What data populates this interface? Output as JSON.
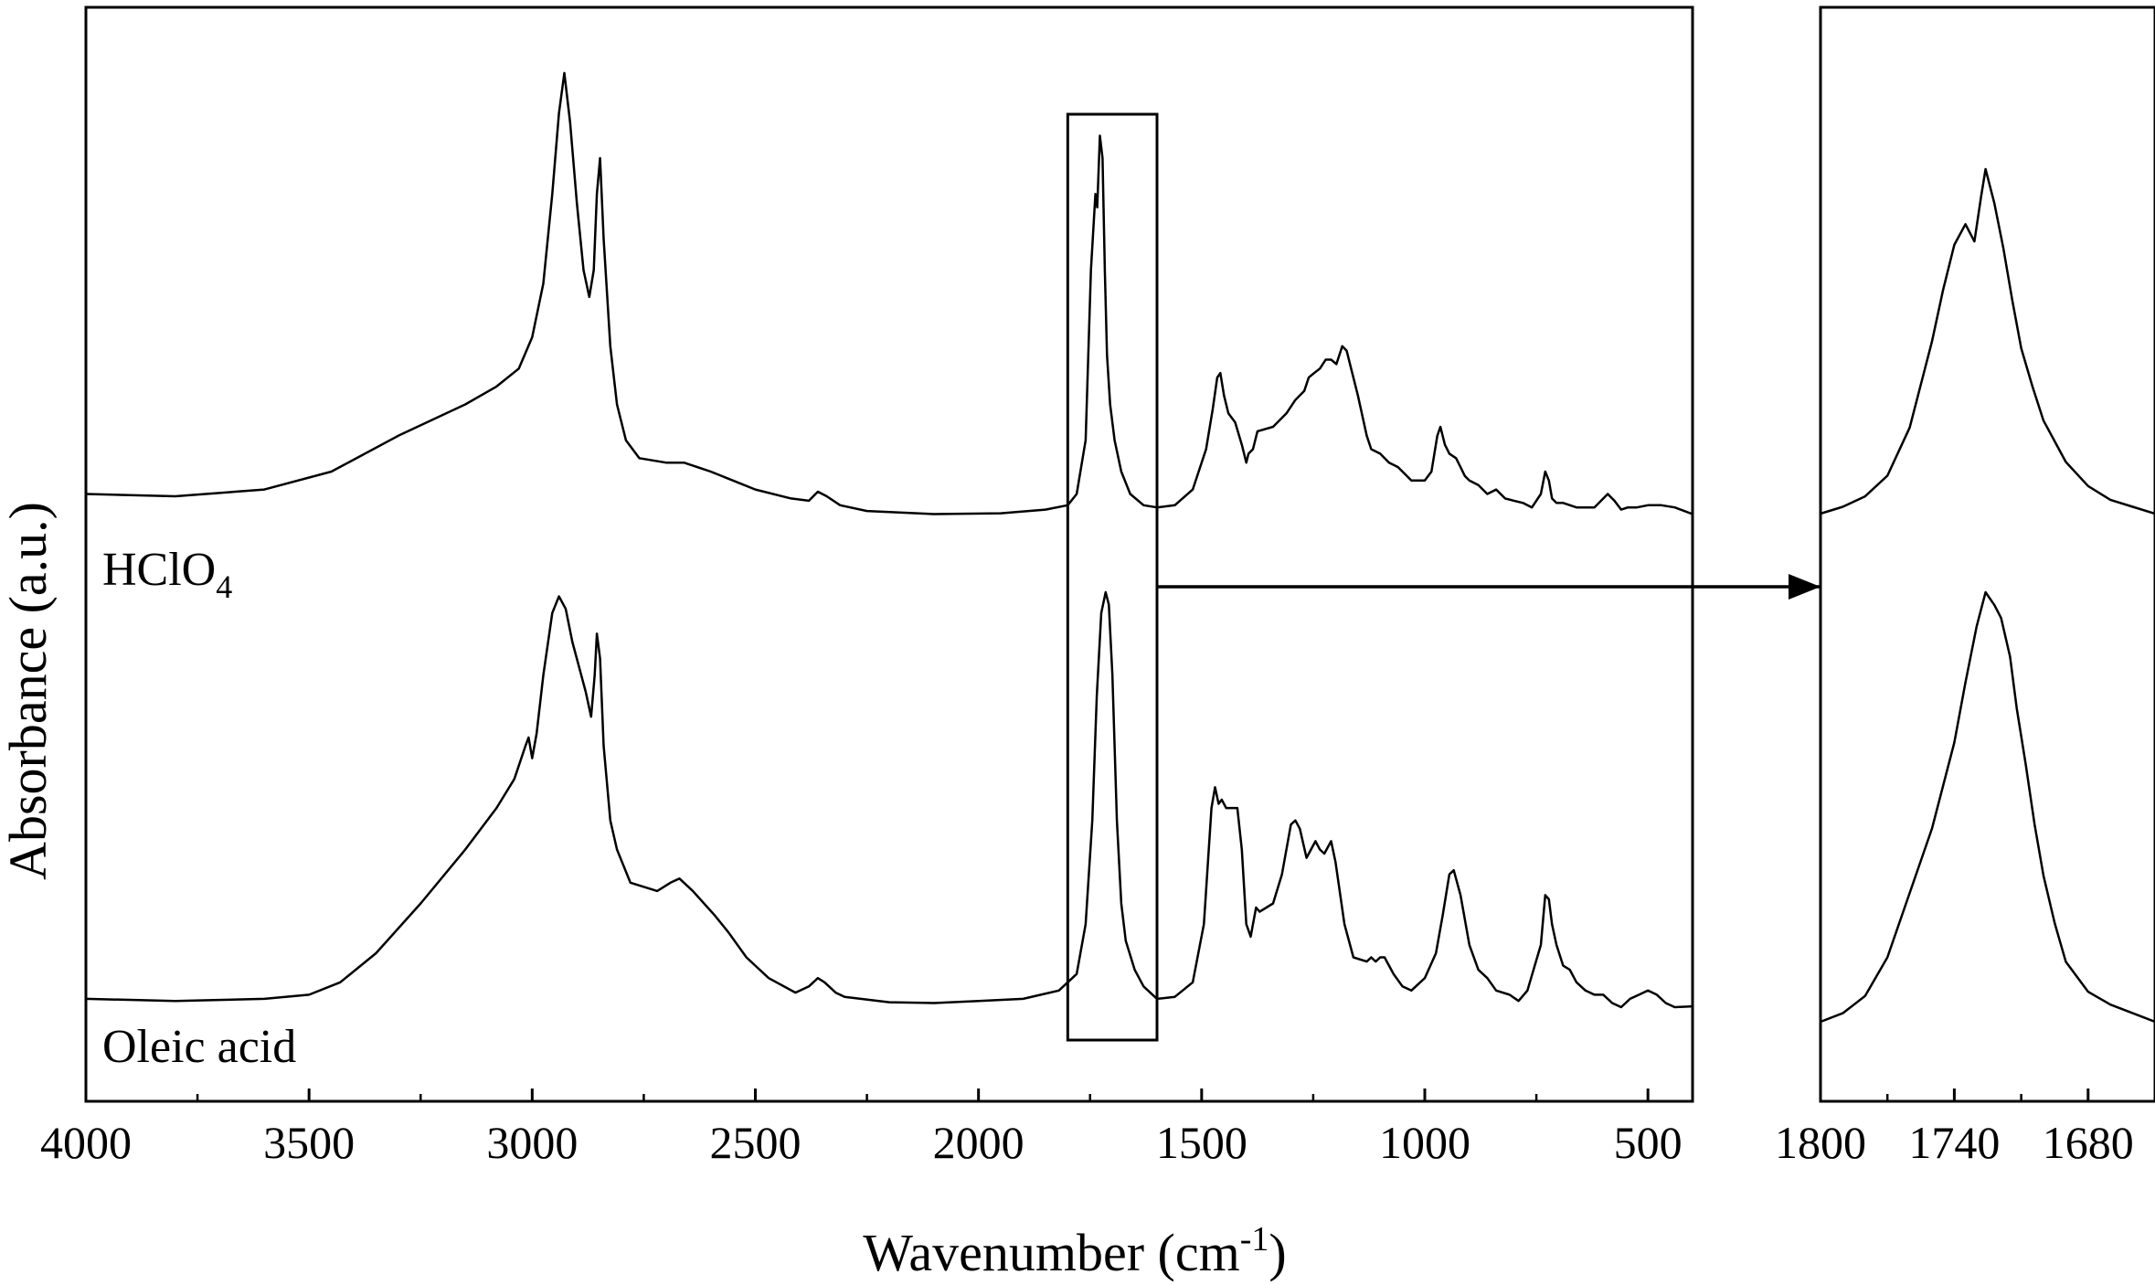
{
  "chart_data": [
    {
      "type": "line",
      "title": "",
      "xlabel": "Wavenumber (cm-1)",
      "xlabel_parts": {
        "main": "Wavenumber (cm",
        "sup": "-1",
        "end": ")"
      },
      "ylabel": "Absorbance (a.u.)",
      "xlim": [
        4000,
        400
      ],
      "x_reversed": true,
      "x_ticks": [
        4000,
        3500,
        3000,
        2500,
        2000,
        1500,
        1000,
        500
      ],
      "y_ticks": [],
      "grid": false,
      "series": [
        {
          "name": "HClO4",
          "label_parts": {
            "main": "HClO",
            "sub": "4"
          },
          "x": [
            4000,
            3800,
            3600,
            3450,
            3300,
            3150,
            3080,
            3030,
            3000,
            2975,
            2955,
            2940,
            2928,
            2915,
            2900,
            2885,
            2872,
            2862,
            2855,
            2848,
            2840,
            2825,
            2810,
            2790,
            2760,
            2700,
            2660,
            2600,
            2550,
            2500,
            2420,
            2380,
            2360,
            2340,
            2310,
            2250,
            2100,
            1950,
            1850,
            1800,
            1780,
            1760,
            1748,
            1738,
            1734,
            1728,
            1722,
            1717,
            1712,
            1705,
            1695,
            1680,
            1660,
            1630,
            1600,
            1560,
            1520,
            1490,
            1475,
            1465,
            1458,
            1450,
            1440,
            1425,
            1410,
            1400,
            1395,
            1385,
            1375,
            1340,
            1310,
            1290,
            1270,
            1260,
            1248,
            1235,
            1222,
            1210,
            1198,
            1185,
            1175,
            1165,
            1150,
            1130,
            1120,
            1100,
            1080,
            1060,
            1040,
            1030,
            1015,
            1000,
            985,
            972,
            965,
            955,
            945,
            930,
            920,
            910,
            900,
            880,
            860,
            840,
            820,
            800,
            780,
            760,
            740,
            730,
            722,
            715,
            705,
            690,
            660,
            620,
            590,
            575,
            560,
            545,
            525,
            500,
            470,
            440,
            400
          ],
          "y": [
            0.05,
            0.045,
            0.06,
            0.1,
            0.18,
            0.25,
            0.29,
            0.33,
            0.4,
            0.52,
            0.72,
            0.9,
            0.99,
            0.88,
            0.7,
            0.55,
            0.49,
            0.55,
            0.72,
            0.8,
            0.62,
            0.38,
            0.25,
            0.17,
            0.13,
            0.12,
            0.12,
            0.1,
            0.08,
            0.06,
            0.04,
            0.035,
            0.055,
            0.045,
            0.025,
            0.012,
            0.005,
            0.007,
            0.015,
            0.025,
            0.05,
            0.17,
            0.55,
            0.72,
            0.69,
            0.85,
            0.8,
            0.55,
            0.36,
            0.25,
            0.17,
            0.1,
            0.05,
            0.025,
            0.02,
            0.025,
            0.06,
            0.15,
            0.24,
            0.31,
            0.32,
            0.27,
            0.23,
            0.21,
            0.16,
            0.12,
            0.14,
            0.15,
            0.19,
            0.2,
            0.23,
            0.26,
            0.28,
            0.31,
            0.32,
            0.33,
            0.35,
            0.35,
            0.34,
            0.38,
            0.37,
            0.33,
            0.27,
            0.18,
            0.15,
            0.14,
            0.12,
            0.11,
            0.09,
            0.08,
            0.08,
            0.08,
            0.1,
            0.18,
            0.2,
            0.16,
            0.14,
            0.13,
            0.11,
            0.09,
            0.08,
            0.07,
            0.05,
            0.06,
            0.04,
            0.035,
            0.03,
            0.02,
            0.05,
            0.1,
            0.08,
            0.04,
            0.03,
            0.03,
            0.02,
            0.02,
            0.05,
            0.035,
            0.015,
            0.02,
            0.02,
            0.025,
            0.025,
            0.02,
            0.005
          ]
        },
        {
          "name": "Oleic acid",
          "x": [
            4000,
            3800,
            3600,
            3500,
            3430,
            3350,
            3250,
            3150,
            3080,
            3040,
            3015,
            3008,
            3000,
            2990,
            2975,
            2955,
            2940,
            2925,
            2910,
            2895,
            2880,
            2868,
            2860,
            2855,
            2848,
            2840,
            2825,
            2810,
            2780,
            2720,
            2690,
            2670,
            2640,
            2590,
            2560,
            2520,
            2470,
            2410,
            2380,
            2360,
            2345,
            2320,
            2300,
            2200,
            2100,
            2000,
            1900,
            1820,
            1780,
            1760,
            1745,
            1735,
            1725,
            1715,
            1708,
            1700,
            1690,
            1680,
            1670,
            1650,
            1630,
            1600,
            1560,
            1520,
            1495,
            1478,
            1470,
            1462,
            1455,
            1445,
            1420,
            1410,
            1400,
            1390,
            1385,
            1378,
            1370,
            1340,
            1320,
            1300,
            1290,
            1280,
            1265,
            1245,
            1235,
            1225,
            1210,
            1200,
            1180,
            1160,
            1130,
            1120,
            1110,
            1100,
            1090,
            1080,
            1070,
            1050,
            1030,
            1000,
            975,
            960,
            945,
            935,
            920,
            900,
            880,
            860,
            840,
            810,
            790,
            770,
            740,
            730,
            722,
            715,
            705,
            690,
            675,
            660,
            640,
            620,
            600,
            580,
            560,
            540,
            520,
            500,
            480,
            460,
            440,
            400
          ],
          "y": [
            0.02,
            0.015,
            0.02,
            0.03,
            0.06,
            0.13,
            0.25,
            0.38,
            0.48,
            0.55,
            0.63,
            0.65,
            0.6,
            0.66,
            0.8,
            0.95,
            0.99,
            0.96,
            0.88,
            0.82,
            0.76,
            0.7,
            0.8,
            0.9,
            0.84,
            0.63,
            0.45,
            0.38,
            0.3,
            0.28,
            0.3,
            0.31,
            0.28,
            0.22,
            0.18,
            0.12,
            0.07,
            0.035,
            0.05,
            0.07,
            0.06,
            0.035,
            0.025,
            0.012,
            0.01,
            0.015,
            0.02,
            0.04,
            0.08,
            0.2,
            0.45,
            0.75,
            0.95,
            1.0,
            0.97,
            0.8,
            0.45,
            0.25,
            0.16,
            0.09,
            0.05,
            0.02,
            0.025,
            0.06,
            0.2,
            0.48,
            0.53,
            0.49,
            0.5,
            0.48,
            0.48,
            0.38,
            0.2,
            0.17,
            0.2,
            0.24,
            0.23,
            0.25,
            0.32,
            0.44,
            0.45,
            0.43,
            0.36,
            0.4,
            0.38,
            0.37,
            0.4,
            0.35,
            0.2,
            0.12,
            0.11,
            0.12,
            0.11,
            0.12,
            0.12,
            0.1,
            0.08,
            0.05,
            0.04,
            0.07,
            0.13,
            0.22,
            0.32,
            0.33,
            0.27,
            0.15,
            0.09,
            0.07,
            0.04,
            0.03,
            0.015,
            0.04,
            0.15,
            0.27,
            0.26,
            0.2,
            0.15,
            0.1,
            0.09,
            0.06,
            0.04,
            0.03,
            0.03,
            0.01,
            0.0,
            0.02,
            0.03,
            0.04,
            0.03,
            0.01,
            0.0,
            0.002
          ]
        }
      ],
      "highlight_box": {
        "x_range": [
          1800,
          1600
        ]
      }
    },
    {
      "type": "line",
      "title": "",
      "xlabel": "",
      "ylabel": "",
      "xlim": [
        1800,
        1650
      ],
      "x_reversed": true,
      "x_ticks": [
        1800,
        1740,
        1680
      ],
      "x_minor_ticks": [
        1770,
        1710
      ],
      "grid": false,
      "series": [
        {
          "name": "HClO4",
          "x": [
            1800,
            1790,
            1780,
            1770,
            1760,
            1750,
            1745,
            1740,
            1735,
            1731,
            1728,
            1726,
            1722,
            1718,
            1714,
            1710,
            1705,
            1700,
            1690,
            1680,
            1670,
            1660,
            1650
          ],
          "y": [
            0.0,
            0.02,
            0.05,
            0.11,
            0.25,
            0.5,
            0.65,
            0.78,
            0.84,
            0.79,
            0.92,
            1.0,
            0.9,
            0.77,
            0.62,
            0.48,
            0.37,
            0.27,
            0.15,
            0.08,
            0.04,
            0.02,
            0.0
          ]
        },
        {
          "name": "Oleic acid",
          "x": [
            1800,
            1790,
            1780,
            1770,
            1760,
            1750,
            1740,
            1735,
            1730,
            1726,
            1722,
            1719,
            1715,
            1712,
            1708,
            1704,
            1700,
            1695,
            1690,
            1680,
            1670,
            1660,
            1650
          ],
          "y": [
            0.0,
            0.02,
            0.06,
            0.15,
            0.3,
            0.45,
            0.65,
            0.79,
            0.92,
            1.0,
            0.97,
            0.94,
            0.85,
            0.73,
            0.6,
            0.46,
            0.34,
            0.23,
            0.14,
            0.07,
            0.04,
            0.02,
            0.0
          ]
        }
      ],
      "callout": {
        "from_x": 1600,
        "arrow": true
      }
    }
  ]
}
